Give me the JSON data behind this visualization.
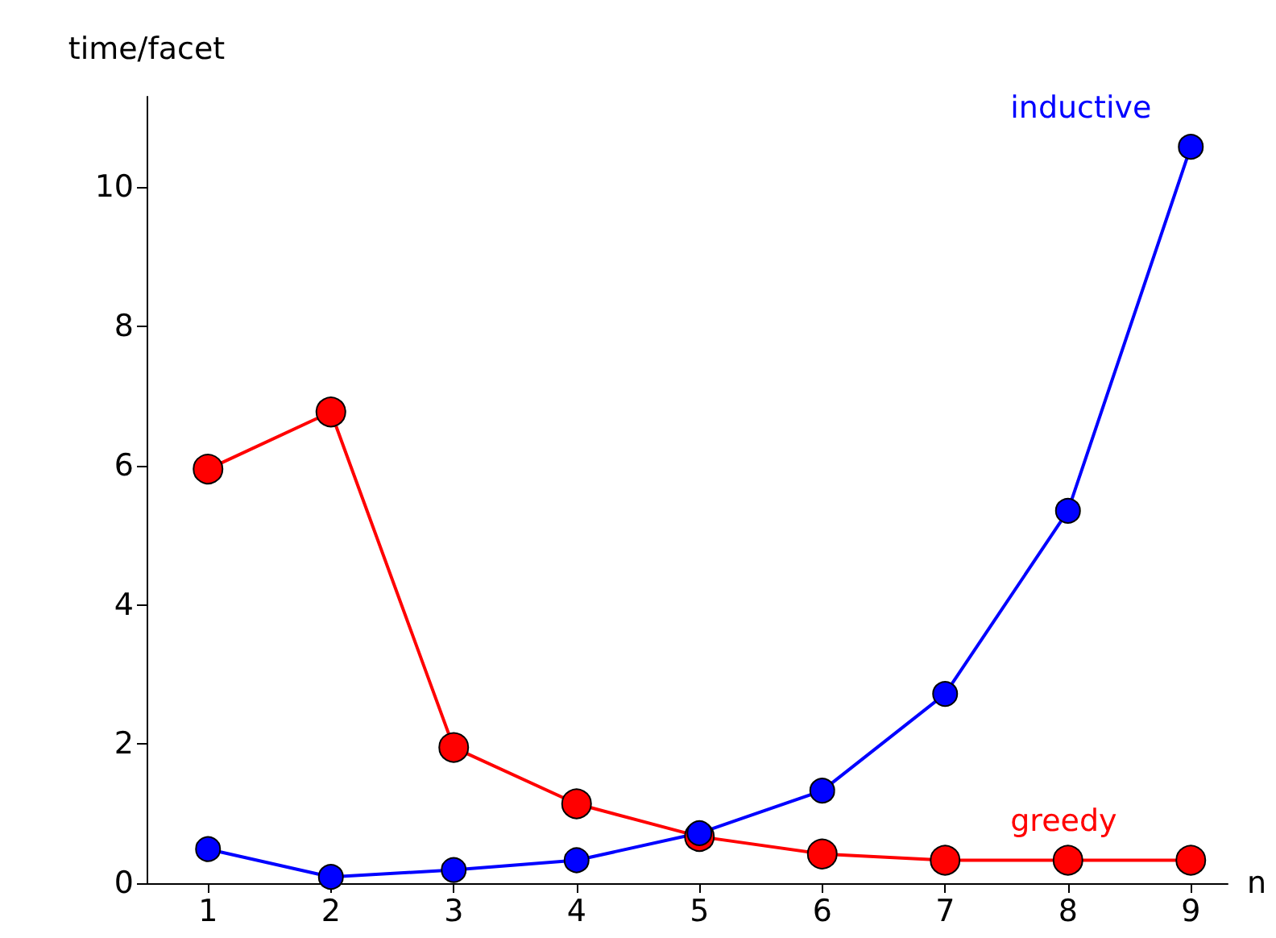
{
  "chart_data": {
    "type": "line",
    "xlabel": "n",
    "ylabel": "time/facet",
    "x": [
      1,
      2,
      3,
      4,
      5,
      6,
      7,
      8,
      9
    ],
    "series": [
      {
        "name": "greedy",
        "color": "#ff0000",
        "values": [
          5.95,
          6.77,
          1.95,
          1.14,
          0.67,
          0.42,
          0.33,
          0.33,
          0.33
        ]
      },
      {
        "name": "inductive",
        "color": "#0000ff",
        "values": [
          0.49,
          0.09,
          0.19,
          0.33,
          0.72,
          1.33,
          2.72,
          5.35,
          10.58
        ]
      }
    ],
    "xlim": [
      0.5,
      9.3
    ],
    "xticks": [
      1,
      2,
      3,
      4,
      5,
      6,
      7,
      8,
      9
    ],
    "ylim": [
      0,
      11.3
    ],
    "yticks": [
      0,
      2,
      4,
      6,
      8,
      10
    ],
    "grid": false,
    "legend": false,
    "marker": "circle",
    "line_style": "solid"
  }
}
